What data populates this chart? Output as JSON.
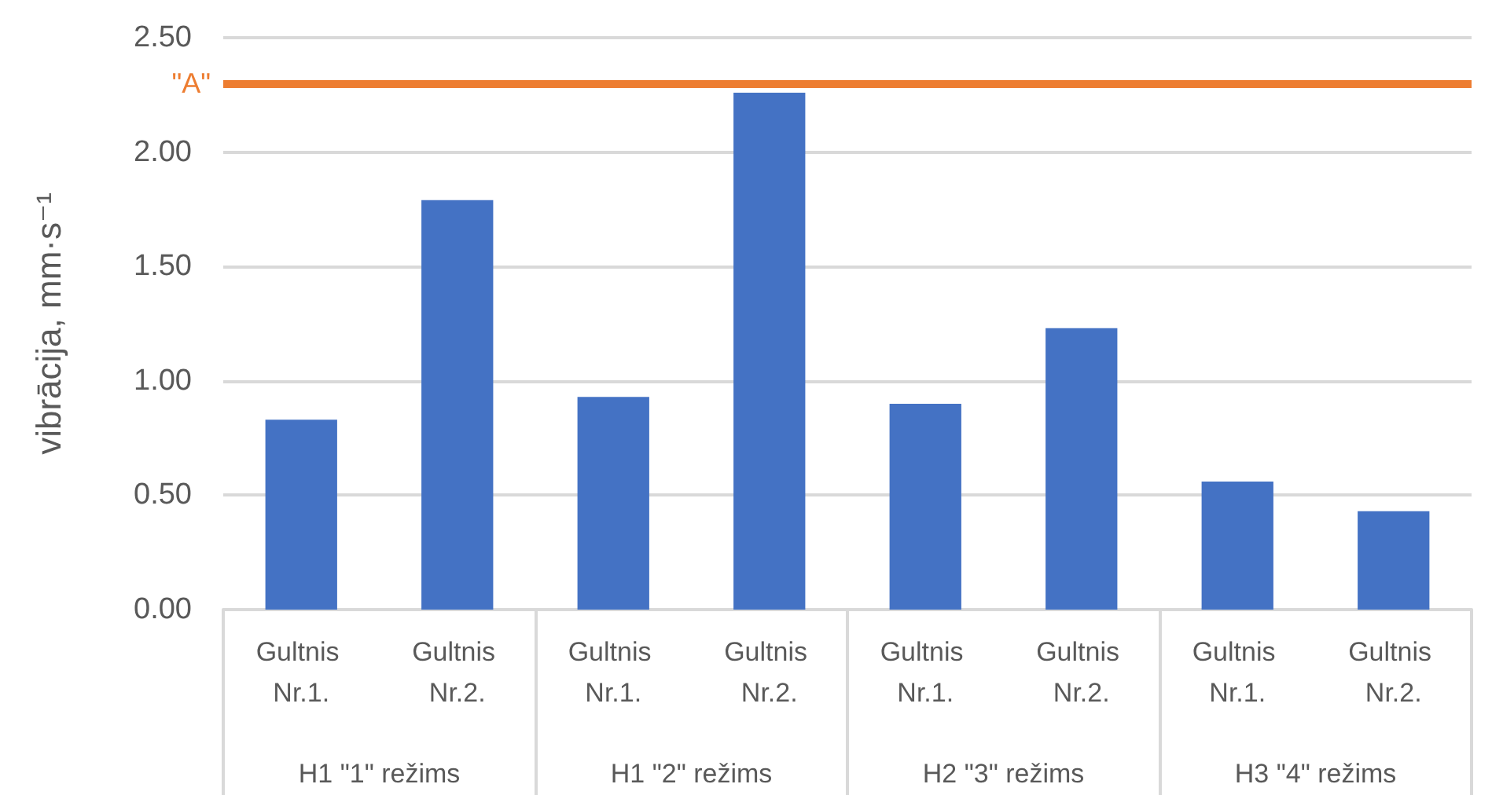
{
  "chart_data": {
    "type": "bar",
    "ylabel": "vibrācija, mm·s⁻¹",
    "categories": [
      "Gultnis Nr.1.",
      "Gultnis Nr.2.",
      "Gultnis Nr.1.",
      "Gultnis Nr.2.",
      "Gultnis Nr.1.",
      "Gultnis Nr.2.",
      "Gultnis Nr.1.",
      "Gultnis Nr.2."
    ],
    "values": [
      0.83,
      1.79,
      0.93,
      2.26,
      0.9,
      1.23,
      0.56,
      0.43
    ],
    "color": "#4472c4",
    "annotations": [
      "H1 \"1\" režims",
      "H1 \"2\" režims",
      "H2 \"3\" režims",
      "H3 \"4\" režims"
    ],
    "ref_lines": [
      {
        "axis": "y",
        "value": 2.3,
        "label": "\"A\"",
        "color": "#ed7d31"
      }
    ],
    "ylim": [
      0,
      2.5
    ],
    "yticks": [
      {
        "value": 0,
        "label": "0.00"
      },
      {
        "value": 0.5,
        "label": "0.50"
      },
      {
        "value": 1,
        "label": "1.00"
      },
      {
        "value": 1.5,
        "label": "1.50"
      },
      {
        "value": 2,
        "label": "2.00"
      },
      {
        "value": 2.5,
        "label": "2.50"
      }
    ],
    "grid": "y"
  }
}
